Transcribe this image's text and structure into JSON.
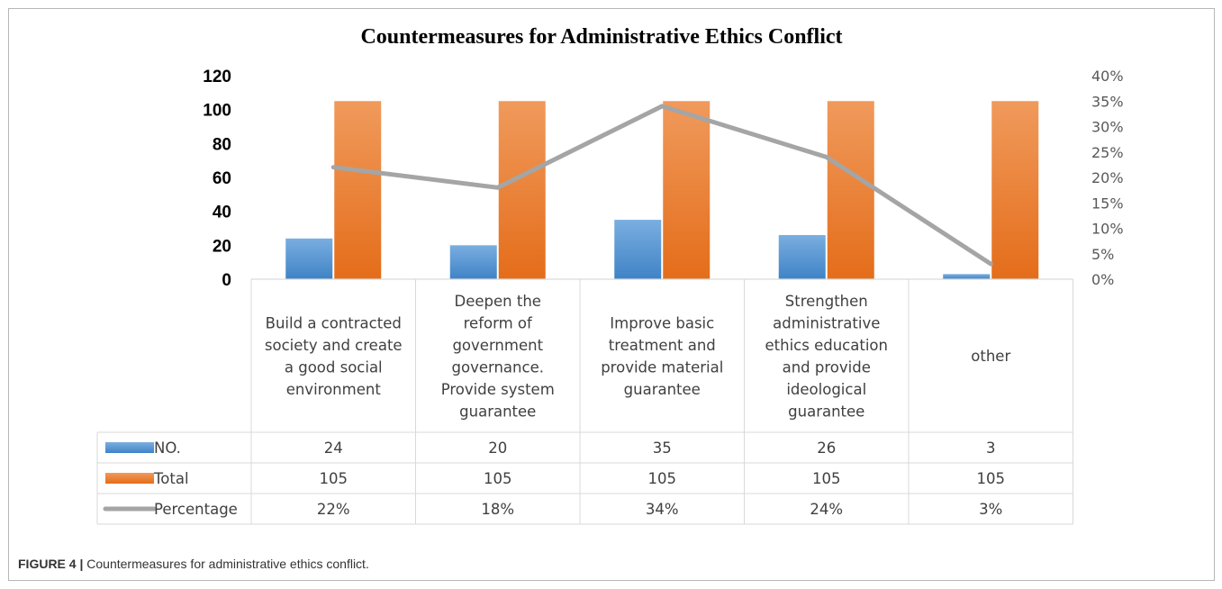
{
  "caption": {
    "label": "FIGURE 4 |",
    "text": " Countermeasures for administrative ethics conflict."
  },
  "chart_data": {
    "type": "bar",
    "title": "Countermeasures for Administrative Ethics Conflict",
    "categories": [
      [
        "Build a contracted",
        "society and create",
        "a good social",
        "environment"
      ],
      [
        "Deepen the",
        "reform of",
        "government",
        "governance.",
        "Provide system",
        "guarantee"
      ],
      [
        "Improve basic",
        "treatment and",
        "provide material",
        "guarantee"
      ],
      [
        "Strengthen",
        "administrative",
        "ethics education",
        "and provide",
        "ideological",
        "guarantee"
      ],
      [
        "other"
      ]
    ],
    "series": [
      {
        "name": "NO.",
        "type": "bar",
        "axis": "left",
        "values": [
          24,
          20,
          35,
          26,
          3
        ],
        "labels": [
          "24",
          "20",
          "35",
          "26",
          "3"
        ],
        "color": "#5b9bd5"
      },
      {
        "name": "Total",
        "type": "bar",
        "axis": "left",
        "values": [
          105,
          105,
          105,
          105,
          105
        ],
        "labels": [
          "105",
          "105",
          "105",
          "105",
          "105"
        ],
        "color": "#ed7d31"
      },
      {
        "name": "Percentage",
        "type": "line",
        "axis": "right",
        "values": [
          0.22,
          0.18,
          0.34,
          0.24,
          0.03
        ],
        "labels": [
          "22%",
          "18%",
          "34%",
          "24%",
          "3%"
        ],
        "color": "#a5a5a5"
      }
    ],
    "y_left": {
      "min": 0,
      "max": 120,
      "ticks": [
        "0",
        "20",
        "40",
        "60",
        "80",
        "100",
        "120"
      ]
    },
    "y_right": {
      "min": 0,
      "max": 0.4,
      "ticks": [
        "0%",
        "5%",
        "10%",
        "15%",
        "20%",
        "25%",
        "30%",
        "35%",
        "40%"
      ]
    },
    "data_table": true,
    "grid": false,
    "legend": "data-table"
  }
}
